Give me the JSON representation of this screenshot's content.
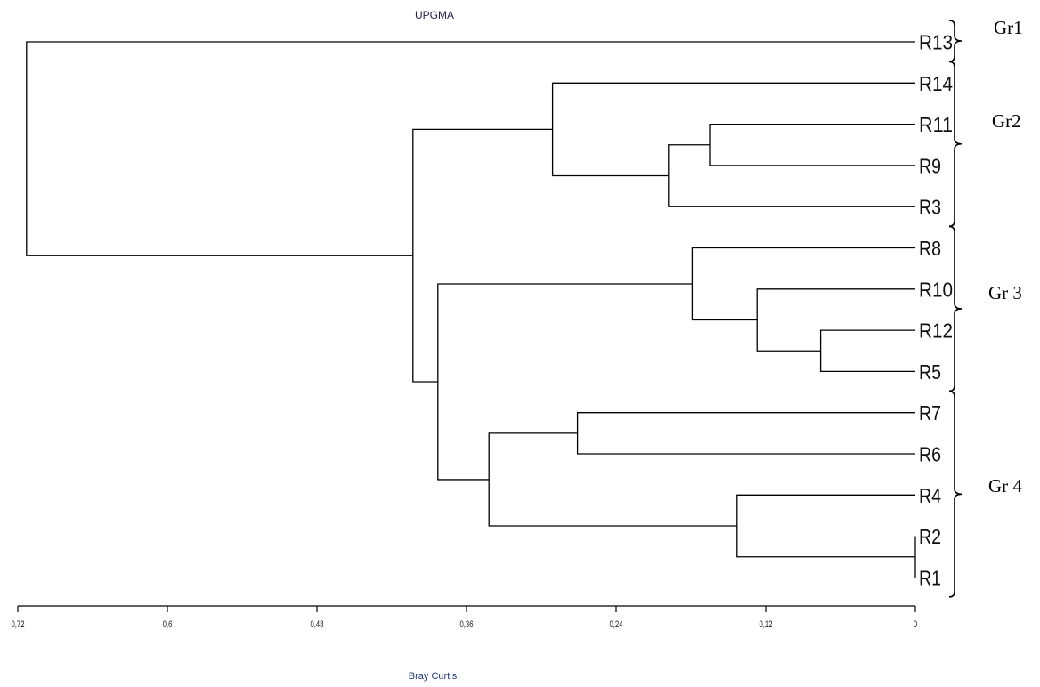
{
  "chart_data": {
    "type": "dendrogram",
    "title": "UPGMA",
    "xlabel": "Bray Curtis",
    "xlim": [
      0.72,
      0
    ],
    "ticks": [
      {
        "value": 0.72,
        "label": "0,72"
      },
      {
        "value": 0.6,
        "label": "0,6"
      },
      {
        "value": 0.48,
        "label": "0,48"
      },
      {
        "value": 0.36,
        "label": "0,36"
      },
      {
        "value": 0.24,
        "label": "0,24"
      },
      {
        "value": 0.12,
        "label": "0,12"
      },
      {
        "value": 0,
        "label": "0"
      }
    ],
    "leaves": [
      "R13",
      "R14",
      "R11",
      "R9",
      "R3",
      "R8",
      "R10",
      "R12",
      "R5",
      "R7",
      "R6",
      "R4",
      "R2",
      "R1"
    ],
    "merges": [
      {
        "a": "R2",
        "b": "R1",
        "height": 0.0
      },
      {
        "a": "R12",
        "b": "R5",
        "height": 0.076
      },
      {
        "a": "R11",
        "b": "R9",
        "height": 0.165
      },
      {
        "a": "R10",
        "b": "[R12,R5]",
        "height": 0.127
      },
      {
        "a": "R4",
        "b": "[R2,R1]",
        "height": 0.143
      },
      {
        "a": "[R11,R9]",
        "b": "R3",
        "height": 0.198
      },
      {
        "a": "R8",
        "b": "[R10,R12,R5]",
        "height": 0.179
      },
      {
        "a": "R7",
        "b": "R6",
        "height": 0.271
      },
      {
        "a": "R14",
        "b": "[R11,R9,R3]",
        "height": 0.291
      },
      {
        "a": "[R7,R6]",
        "b": "[R4,R2,R1]",
        "height": 0.342
      },
      {
        "a": "[R8,R10,R12,R5]",
        "b": "[R7,R6,R4,R2,R1]",
        "height": 0.383
      },
      {
        "a": "[R14,R11,R9,R3]",
        "b": "[R8,R10,R12,R5,R7,R6,R4,R2,R1]",
        "height": 0.403
      },
      {
        "a": "R13",
        "b": "all others",
        "height": 0.713
      }
    ],
    "groups": [
      {
        "label": "Gr1",
        "members": [
          "R13"
        ]
      },
      {
        "label": "Gr2",
        "members": [
          "R14",
          "R11",
          "R9",
          "R3"
        ]
      },
      {
        "label": "Gr 3",
        "members": [
          "R8",
          "R10",
          "R12",
          "R5"
        ]
      },
      {
        "label": "Gr 4",
        "members": [
          "R7",
          "R6",
          "R4",
          "R2",
          "R1"
        ]
      }
    ]
  }
}
